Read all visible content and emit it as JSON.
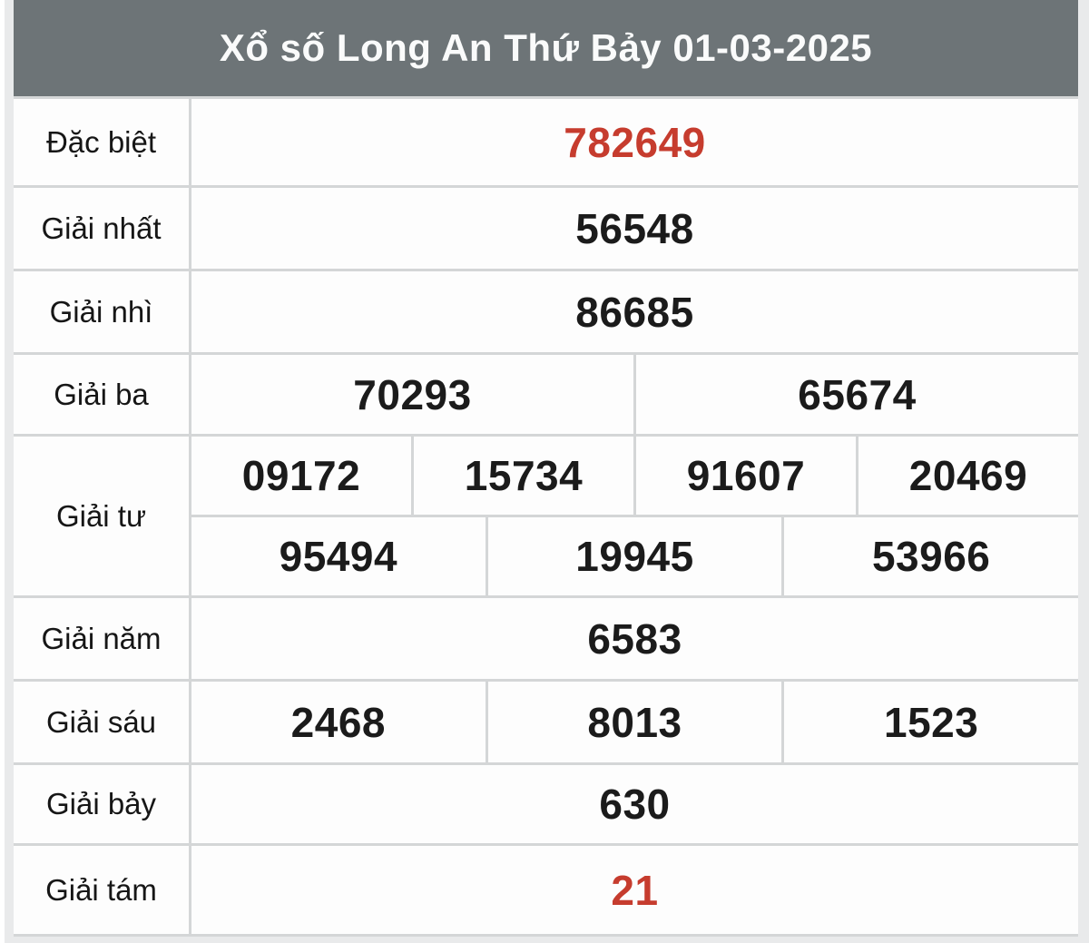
{
  "header": {
    "title": "Xổ số Long An Thứ Bảy 01-03-2025"
  },
  "colors": {
    "header_bg": "#6d7477",
    "header_text": "#fafbfb",
    "highlight_red": "#c63c2e",
    "number_text": "#1b1b1b",
    "cell_bg": "#fdfdfd",
    "grid_line": "#d4d6d7",
    "page_bg": "#e9eaeb"
  },
  "prizes": [
    {
      "name": "Đặc biệt",
      "values": [
        "782649"
      ],
      "highlight": true
    },
    {
      "name": "Giải nhất",
      "values": [
        "56548"
      ]
    },
    {
      "name": "Giải nhì",
      "values": [
        "86685"
      ]
    },
    {
      "name": "Giải ba",
      "values": [
        "70293",
        "65674"
      ]
    },
    {
      "name": "Giải tư",
      "values": [
        "09172",
        "15734",
        "91607",
        "20469",
        "95494",
        "19945",
        "53966"
      ]
    },
    {
      "name": "Giải năm",
      "values": [
        "6583"
      ]
    },
    {
      "name": "Giải sáu",
      "values": [
        "2468",
        "8013",
        "1523"
      ]
    },
    {
      "name": "Giải bảy",
      "values": [
        "630"
      ]
    },
    {
      "name": "Giải tám",
      "values": [
        "21"
      ],
      "highlight": true
    }
  ]
}
